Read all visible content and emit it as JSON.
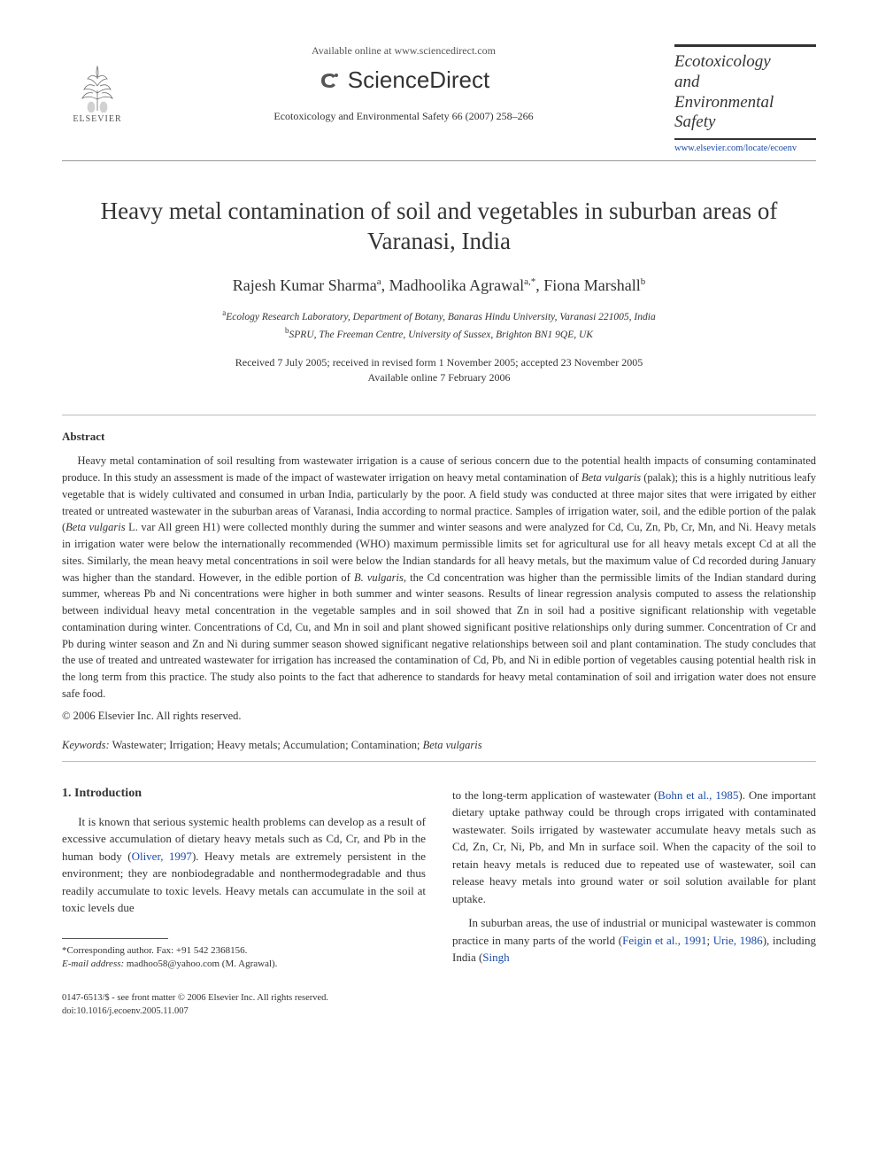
{
  "header": {
    "publisher": "ELSEVIER",
    "available_online": "Available online at www.sciencedirect.com",
    "sciencedirect": "ScienceDirect",
    "journal_ref": "Ecotoxicology and Environmental Safety 66 (2007) 258–266",
    "journal_name_line1": "Ecotoxicology",
    "journal_name_line2": "and",
    "journal_name_line3": "Environmental",
    "journal_name_line4": "Safety",
    "journal_link": "www.elsevier.com/locate/ecoenv"
  },
  "article": {
    "title": "Heavy metal contamination of soil and vegetables in suburban areas of Varanasi, India",
    "authors_html": "Rajesh Kumar Sharma<sup>a</sup>, Madhoolika Agrawal<sup>a,*</sup>, Fiona Marshall<sup>b</sup>",
    "affil_a": "Ecology Research Laboratory, Department of Botany, Banaras Hindu University, Varanasi 221005, India",
    "affil_b": "SPRU, The Freeman Centre, University of Sussex, Brighton BN1 9QE, UK",
    "dates_line1": "Received 7 July 2005; received in revised form 1 November 2005; accepted 23 November 2005",
    "dates_line2": "Available online 7 February 2006"
  },
  "abstract": {
    "heading": "Abstract",
    "body": "Heavy metal contamination of soil resulting from wastewater irrigation is a cause of serious concern due to the potential health impacts of consuming contaminated produce. In this study an assessment is made of the impact of wastewater irrigation on heavy metal contamination of Beta vulgaris (palak); this is a highly nutritious leafy vegetable that is widely cultivated and consumed in urban India, particularly by the poor. A field study was conducted at three major sites that were irrigated by either treated or untreated wastewater in the suburban areas of Varanasi, India according to normal practice. Samples of irrigation water, soil, and the edible portion of the palak (Beta vulgaris L. var All green H1) were collected monthly during the summer and winter seasons and were analyzed for Cd, Cu, Zn, Pb, Cr, Mn, and Ni. Heavy metals in irrigation water were below the internationally recommended (WHO) maximum permissible limits set for agricultural use for all heavy metals except Cd at all the sites. Similarly, the mean heavy metal concentrations in soil were below the Indian standards for all heavy metals, but the maximum value of Cd recorded during January was higher than the standard. However, in the edible portion of B. vulgaris, the Cd concentration was higher than the permissible limits of the Indian standard during summer, whereas Pb and Ni concentrations were higher in both summer and winter seasons. Results of linear regression analysis computed to assess the relationship between individual heavy metal concentration in the vegetable samples and in soil showed that Zn in soil had a positive significant relationship with vegetable contamination during winter. Concentrations of Cd, Cu, and Mn in soil and plant showed significant positive relationships only during summer. Concentration of Cr and Pb during winter season and Zn and Ni during summer season showed significant negative relationships between soil and plant contamination. The study concludes that the use of treated and untreated wastewater for irrigation has increased the contamination of Cd, Pb, and Ni in edible portion of vegetables causing potential health risk in the long term from this practice. The study also points to the fact that adherence to standards for heavy metal contamination of soil and irrigation water does not ensure safe food.",
    "copyright": "© 2006 Elsevier Inc. All rights reserved."
  },
  "keywords": {
    "label": "Keywords:",
    "text": "Wastewater; Irrigation; Heavy metals; Accumulation; Contamination; Beta vulgaris"
  },
  "introduction": {
    "heading": "1. Introduction",
    "col1_p1": "It is known that serious systemic health problems can develop as a result of excessive accumulation of dietary heavy metals such as Cd, Cr, and Pb in the human body (Oliver, 1997). Heavy metals are extremely persistent in the environment; they are nonbiodegradable and nonthermodegradable and thus readily accumulate to toxic levels. Heavy metals can accumulate in the soil at toxic levels due",
    "col2_p1": "to the long-term application of wastewater (Bohn et al., 1985). One important dietary uptake pathway could be through crops irrigated with contaminated wastewater. Soils irrigated by wastewater accumulate heavy metals such as Cd, Zn, Cr, Ni, Pb, and Mn in surface soil. When the capacity of the soil to retain heavy metals is reduced due to repeated use of wastewater, soil can release heavy metals into ground water or soil solution available for plant uptake.",
    "col2_p2": "In suburban areas, the use of industrial or municipal wastewater is common practice in many parts of the world (Feigin et al., 1991; Urie, 1986), including India (Singh"
  },
  "footnotes": {
    "corr": "*Corresponding author. Fax: +91 542 2368156.",
    "email_label": "E-mail address:",
    "email": "madhoo58@yahoo.com (M. Agrawal)."
  },
  "footer": {
    "line1": "0147-6513/$ - see front matter © 2006 Elsevier Inc. All rights reserved.",
    "line2": "doi:10.1016/j.ecoenv.2005.11.007"
  },
  "colors": {
    "link": "#1a4ba8",
    "text": "#333333",
    "rule": "#999999"
  }
}
